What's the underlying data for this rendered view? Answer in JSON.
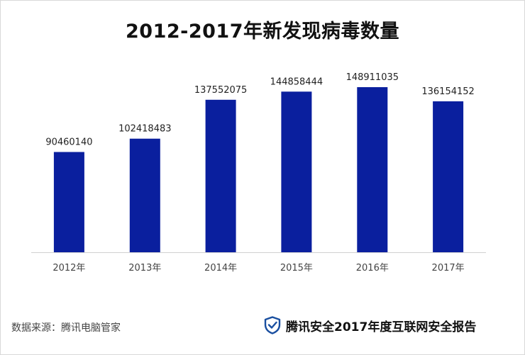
{
  "title": "2012-2017年新发现病毒数量",
  "footer": {
    "source": "数据来源：腾讯电脑管家",
    "brand": "腾讯安全2017年度互联网安全报告",
    "brand_icon": "shield-check-icon",
    "brand_color": "#1a4fa0"
  },
  "chart_data": {
    "type": "bar",
    "title": "2012-2017年新发现病毒数量",
    "xlabel": "",
    "ylabel": "",
    "categories": [
      "2012年",
      "2013年",
      "2014年",
      "2015年",
      "2016年",
      "2017年"
    ],
    "values": [
      90460140,
      102418483,
      137552075,
      144858444,
      148911035,
      136154152
    ],
    "data_labels": [
      "90460140",
      "102418483",
      "137552075",
      "144858444",
      "148911035",
      "136154152"
    ],
    "ylim": [
      0,
      170000000
    ],
    "grid": false,
    "legend": "none",
    "bar_color": "#0a1f9e"
  }
}
